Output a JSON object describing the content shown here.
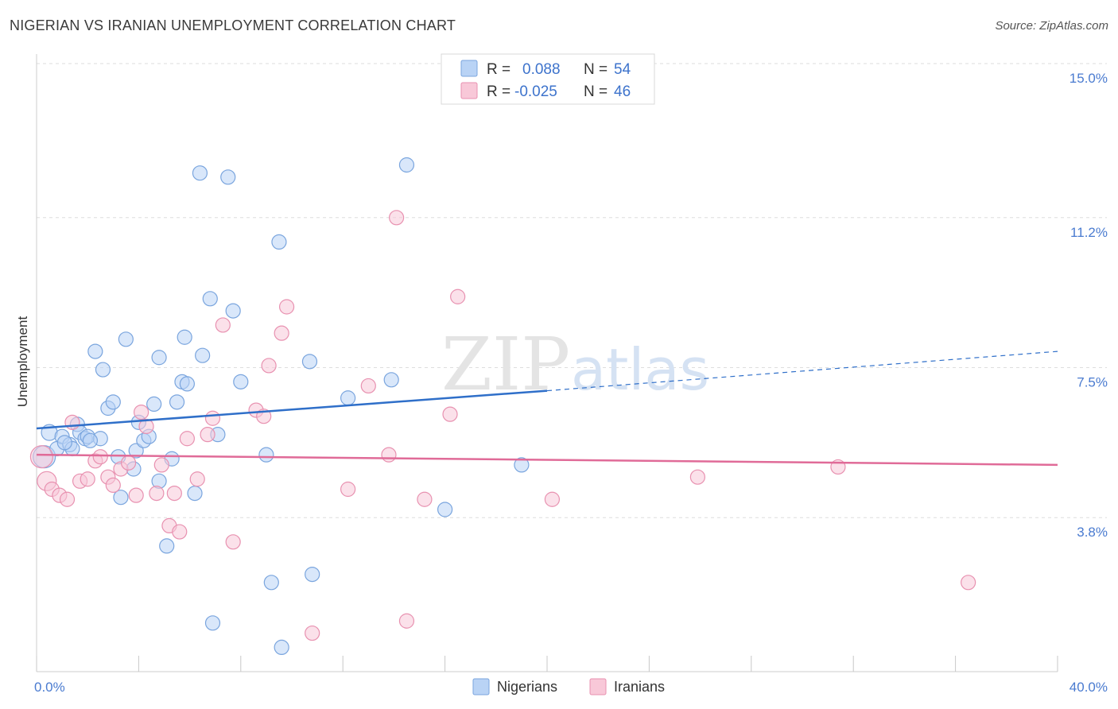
{
  "title": "NIGERIAN VS IRANIAN UNEMPLOYMENT CORRELATION CHART",
  "source": "Source: ZipAtlas.com",
  "watermark": {
    "zip": "ZIP",
    "atlas": "atlas"
  },
  "legend": {
    "r_label": "R =",
    "n_label": "N =",
    "rows": [
      {
        "r": "0.088",
        "n": "54"
      },
      {
        "r": "-0.025",
        "n": "46"
      }
    ]
  },
  "colors": {
    "nigerians_fill": "#b9d3f5",
    "nigerians_stroke": "#7aa5de",
    "nigerians_line": "#2f6fc9",
    "iranians_fill": "#f8c8d8",
    "iranians_stroke": "#e891b0",
    "iranians_line": "#e06b98",
    "grid": "#dddddd",
    "tick_text": "#4a7bd0"
  },
  "chart_data": {
    "type": "scatter",
    "title": "NIGERIAN VS IRANIAN UNEMPLOYMENT CORRELATION CHART",
    "xlabel": "",
    "ylabel": "Unemployment",
    "xlim": [
      0,
      40
    ],
    "ylim": [
      0,
      15
    ],
    "x_tick_labels": [
      {
        "value": 0,
        "label": "0.0%"
      },
      {
        "value": 40,
        "label": "40.0%"
      }
    ],
    "y_tick_labels": [
      {
        "value": 3.8,
        "label": "3.8%"
      },
      {
        "value": 7.5,
        "label": "7.5%"
      },
      {
        "value": 11.2,
        "label": "11.2%"
      },
      {
        "value": 15.0,
        "label": "15.0%"
      }
    ],
    "grid": true,
    "legend_position": "top-center",
    "series": [
      {
        "name": "Nigerians",
        "r": 0.088,
        "n": 54,
        "trend": {
          "x1": 0,
          "y1": 6.0,
          "x2": 20,
          "y2": 6.93,
          "dash_x2": 40,
          "dash_y2": 7.9
        },
        "points": [
          [
            0.3,
            5.3,
            14
          ],
          [
            0.5,
            5.9,
            10
          ],
          [
            0.8,
            5.5,
            9
          ],
          [
            1.0,
            5.8,
            9
          ],
          [
            1.3,
            5.6,
            9
          ],
          [
            1.4,
            5.5,
            9
          ],
          [
            1.6,
            6.1,
            9
          ],
          [
            1.7,
            5.9,
            9
          ],
          [
            1.9,
            5.75,
            9
          ],
          [
            2.0,
            5.8,
            9
          ],
          [
            2.5,
            5.75,
            9
          ],
          [
            2.3,
            7.9,
            9
          ],
          [
            2.6,
            7.45,
            9
          ],
          [
            2.8,
            6.5,
            9
          ],
          [
            3.0,
            6.65,
            9
          ],
          [
            3.2,
            5.3,
            9
          ],
          [
            3.3,
            4.3,
            9
          ],
          [
            3.5,
            8.2,
            9
          ],
          [
            3.8,
            5.0,
            9
          ],
          [
            3.9,
            5.45,
            9
          ],
          [
            4.0,
            6.15,
            9
          ],
          [
            4.2,
            5.7,
            9
          ],
          [
            4.4,
            5.8,
            9
          ],
          [
            4.6,
            6.6,
            9
          ],
          [
            4.8,
            4.7,
            9
          ],
          [
            4.8,
            7.75,
            9
          ],
          [
            5.1,
            3.1,
            9
          ],
          [
            5.3,
            5.25,
            9
          ],
          [
            5.5,
            6.65,
            9
          ],
          [
            5.7,
            7.15,
            9
          ],
          [
            5.9,
            7.1,
            9
          ],
          [
            5.8,
            8.25,
            9
          ],
          [
            6.2,
            4.4,
            9
          ],
          [
            6.5,
            7.8,
            9
          ],
          [
            6.8,
            9.2,
            9
          ],
          [
            6.9,
            1.2,
            9
          ],
          [
            7.1,
            5.85,
            9
          ],
          [
            7.5,
            12.2,
            9
          ],
          [
            7.7,
            8.9,
            9
          ],
          [
            8.0,
            7.15,
            9
          ],
          [
            9.0,
            5.35,
            9
          ],
          [
            9.2,
            2.2,
            9
          ],
          [
            9.5,
            10.6,
            9
          ],
          [
            10.7,
            7.65,
            9
          ],
          [
            10.8,
            2.4,
            9
          ],
          [
            6.4,
            12.3,
            9
          ],
          [
            9.6,
            0.6,
            9
          ],
          [
            12.2,
            6.75,
            9
          ],
          [
            13.9,
            7.2,
            9
          ],
          [
            14.5,
            12.5,
            9
          ],
          [
            16.0,
            4.0,
            9
          ],
          [
            19.0,
            5.1,
            9
          ],
          [
            1.1,
            5.65,
            9
          ],
          [
            2.1,
            5.7,
            9
          ]
        ]
      },
      {
        "name": "Iranians",
        "r": -0.025,
        "n": 46,
        "trend": {
          "x1": 0,
          "y1": 5.35,
          "x2": 40,
          "y2": 5.1
        },
        "points": [
          [
            0.2,
            5.3,
            14
          ],
          [
            0.4,
            4.7,
            12
          ],
          [
            0.6,
            4.5,
            9
          ],
          [
            0.9,
            4.35,
            9
          ],
          [
            1.2,
            4.25,
            9
          ],
          [
            1.4,
            6.15,
            9
          ],
          [
            1.7,
            4.7,
            9
          ],
          [
            2.0,
            4.75,
            9
          ],
          [
            2.3,
            5.2,
            9
          ],
          [
            2.5,
            5.3,
            9
          ],
          [
            2.8,
            4.8,
            9
          ],
          [
            3.0,
            4.6,
            9
          ],
          [
            3.3,
            5.0,
            9
          ],
          [
            3.6,
            5.15,
            9
          ],
          [
            3.9,
            4.35,
            9
          ],
          [
            4.1,
            6.4,
            9
          ],
          [
            4.3,
            6.05,
            9
          ],
          [
            4.7,
            4.4,
            9
          ],
          [
            4.9,
            5.1,
            9
          ],
          [
            5.2,
            3.6,
            9
          ],
          [
            5.4,
            4.4,
            9
          ],
          [
            5.6,
            3.45,
            9
          ],
          [
            5.9,
            5.75,
            9
          ],
          [
            6.3,
            4.75,
            9
          ],
          [
            6.7,
            5.85,
            9
          ],
          [
            6.9,
            6.25,
            9
          ],
          [
            7.3,
            8.55,
            9
          ],
          [
            7.7,
            3.2,
            9
          ],
          [
            8.6,
            6.45,
            9
          ],
          [
            8.9,
            6.3,
            9
          ],
          [
            9.1,
            7.55,
            9
          ],
          [
            9.6,
            8.35,
            9
          ],
          [
            9.8,
            9.0,
            9
          ],
          [
            10.8,
            0.95,
            9
          ],
          [
            12.2,
            4.5,
            9
          ],
          [
            13.0,
            7.05,
            9
          ],
          [
            13.8,
            5.35,
            9
          ],
          [
            14.1,
            11.2,
            9
          ],
          [
            14.5,
            1.25,
            9
          ],
          [
            15.2,
            4.25,
            9
          ],
          [
            16.2,
            6.35,
            9
          ],
          [
            16.5,
            9.25,
            9
          ],
          [
            20.2,
            4.25,
            9
          ],
          [
            25.9,
            4.8,
            9
          ],
          [
            31.4,
            5.05,
            9
          ],
          [
            36.5,
            2.2,
            9
          ]
        ]
      }
    ]
  }
}
